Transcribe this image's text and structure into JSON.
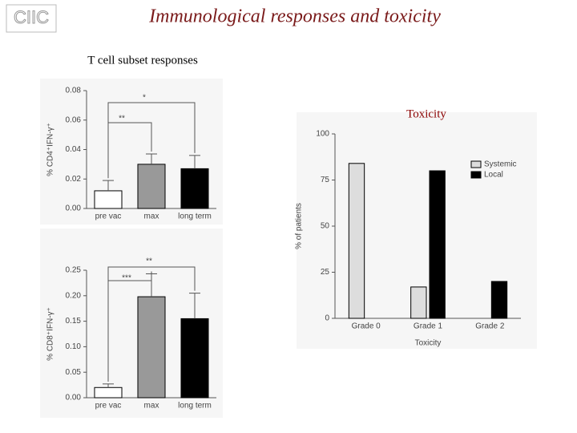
{
  "slide": {
    "logo": "CIIC",
    "title": "Immunological responses and toxicity",
    "section": "T cell subset responses"
  },
  "chart_data": [
    {
      "type": "bar",
      "ylabel": "% CD4⁺IFN-γ⁺",
      "categories": [
        "pre vac",
        "max",
        "long term"
      ],
      "values": [
        0.012,
        0.03,
        0.027
      ],
      "errors": [
        0.007,
        0.007,
        0.009
      ],
      "colors": [
        "#ffffff",
        "#999999",
        "#000000"
      ],
      "ylim": [
        0,
        0.08
      ],
      "yticks": [
        {
          "value": 0,
          "label": "0.00"
        },
        {
          "value": 0.02,
          "label": "0.02"
        },
        {
          "value": 0.04,
          "label": "0.04"
        },
        {
          "value": 0.06,
          "label": "0.06"
        },
        {
          "value": 0.08,
          "label": "0.08"
        }
      ],
      "annotations": [
        "*",
        "**"
      ]
    },
    {
      "type": "bar",
      "ylabel": "% CD8⁺IFN-γ⁺",
      "categories": [
        "pre vac",
        "max",
        "long term"
      ],
      "values": [
        0.02,
        0.198,
        0.155
      ],
      "errors": [
        0.007,
        0.045,
        0.05
      ],
      "colors": [
        "#ffffff",
        "#999999",
        "#000000"
      ],
      "ylim": [
        0,
        0.25
      ],
      "yticks": [
        {
          "value": 0,
          "label": "0.00"
        },
        {
          "value": 0.05,
          "label": "0.05"
        },
        {
          "value": 0.1,
          "label": "0.10"
        },
        {
          "value": 0.15,
          "label": "0.15"
        },
        {
          "value": 0.2,
          "label": "0.20"
        },
        {
          "value": 0.25,
          "label": "0.25"
        }
      ],
      "annotations": [
        "**",
        "***"
      ]
    },
    {
      "type": "bar",
      "title": "Toxicity",
      "xlabel": "Toxicity",
      "ylabel": "% of patients",
      "categories": [
        "Grade 0",
        "Grade 1",
        "Grade 2"
      ],
      "series": [
        {
          "name": "Systemic",
          "color": "#dddddd",
          "values": [
            84,
            17,
            0
          ]
        },
        {
          "name": "Local",
          "color": "#000000",
          "values": [
            0,
            80,
            20
          ]
        }
      ],
      "ylim": [
        0,
        100
      ],
      "yticks": [
        0,
        25,
        50,
        75,
        100
      ],
      "legend": "upper right"
    }
  ]
}
